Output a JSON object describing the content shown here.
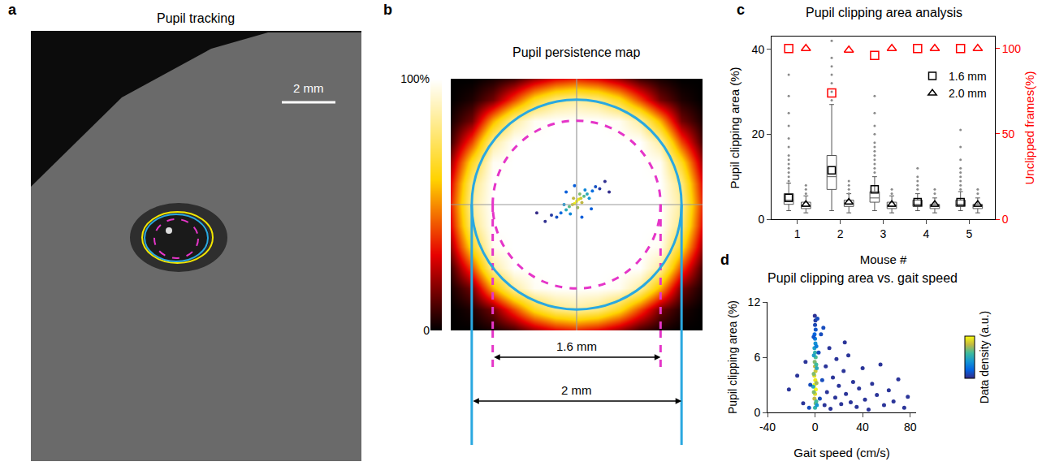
{
  "chart_data": [
    {
      "label": "a",
      "type": "image",
      "title": "Pupil tracking",
      "scale_bar": "2 mm"
    },
    {
      "label": "b",
      "type": "heatmap",
      "title": "Pupil persistence map",
      "x": [
        -1.2,
        -1,
        -0.8,
        -0.6,
        -0.4,
        -0.2,
        0,
        0.2,
        0.4,
        0.6,
        0.8,
        1,
        1.2
      ],
      "y": [
        -1.2,
        -1,
        -0.8,
        -0.6,
        -0.4,
        -0.2,
        0,
        0.2,
        0.4,
        0.6,
        0.8,
        1,
        1.2
      ],
      "z": [
        [
          0,
          0,
          3,
          8,
          20,
          30,
          35,
          30,
          20,
          8,
          3,
          0,
          0
        ],
        [
          0,
          4,
          15,
          40,
          65,
          80,
          85,
          80,
          65,
          40,
          15,
          4,
          0
        ],
        [
          3,
          15,
          55,
          85,
          98,
          100,
          100,
          100,
          98,
          85,
          55,
          15,
          3
        ],
        [
          8,
          40,
          85,
          100,
          100,
          100,
          100,
          100,
          100,
          100,
          85,
          40,
          8
        ],
        [
          20,
          65,
          98,
          100,
          100,
          100,
          100,
          100,
          100,
          100,
          98,
          65,
          20
        ],
        [
          30,
          80,
          100,
          100,
          100,
          100,
          100,
          100,
          100,
          100,
          100,
          80,
          30
        ],
        [
          35,
          85,
          100,
          100,
          100,
          100,
          100,
          100,
          100,
          100,
          100,
          85,
          35
        ],
        [
          30,
          80,
          100,
          100,
          100,
          100,
          100,
          100,
          100,
          100,
          100,
          80,
          30
        ],
        [
          20,
          65,
          98,
          100,
          100,
          100,
          100,
          100,
          100,
          100,
          98,
          65,
          20
        ],
        [
          8,
          40,
          85,
          100,
          100,
          100,
          100,
          100,
          100,
          100,
          85,
          40,
          8
        ],
        [
          3,
          15,
          55,
          85,
          98,
          100,
          100,
          100,
          98,
          85,
          55,
          15,
          3
        ],
        [
          0,
          4,
          15,
          40,
          65,
          80,
          85,
          80,
          65,
          40,
          15,
          4,
          0
        ],
        [
          0,
          0,
          3,
          8,
          20,
          30,
          35,
          30,
          20,
          8,
          3,
          0,
          0
        ]
      ],
      "colorbar": {
        "range": [
          0,
          100
        ],
        "ticks": [
          0,
          {
            "value": 100,
            "label": "100%"
          }
        ]
      },
      "xlim": [
        -1.2,
        1.2
      ],
      "ylim": [
        -1.2,
        1.2
      ],
      "tick_labels": false,
      "apertures": [
        {
          "diameter": 1.6,
          "label": "1.6 mm",
          "color": "#e535c8",
          "line_style": "dash"
        },
        {
          "diameter": 2,
          "label": "2 mm",
          "color": "#2aa8e0",
          "line_style": "solid"
        }
      ],
      "centers": {
        "x": [
          0,
          0.02,
          -0.02,
          0.04,
          -0.04,
          0.05,
          -0.03,
          0.07,
          -0.07,
          0.01,
          0.03,
          0.1,
          -0.1,
          0.12,
          -0.12,
          0.08,
          -0.06,
          0.15,
          -0.15,
          0.18,
          -0.19,
          0.22,
          -0.24,
          0.27,
          -0.3,
          0.31,
          -0.38,
          0.05,
          -0.02,
          0.14,
          -0.1
        ],
        "y": [
          0.03,
          0.05,
          0.01,
          0.06,
          0,
          0.02,
          0.06,
          0.08,
          -0.02,
          -0.03,
          0.1,
          0.1,
          -0.05,
          0.06,
          0,
          0.14,
          -0.09,
          0.13,
          -0.08,
          0.17,
          -0.12,
          0.15,
          -0.1,
          0.22,
          -0.16,
          0.12,
          -0.08,
          -0.12,
          0.18,
          -0.04,
          0.12
        ],
        "density": [
          1,
          0.95,
          0.95,
          0.85,
          0.85,
          0.8,
          0.8,
          0.65,
          0.65,
          0.75,
          0.7,
          0.5,
          0.5,
          0.4,
          0.4,
          0.35,
          0.35,
          0.25,
          0.25,
          0.15,
          0.15,
          0.08,
          0.08,
          0.04,
          0.04,
          0.03,
          0.02,
          0.2,
          0.2,
          0.2,
          0.2
        ]
      }
    },
    {
      "label": "c",
      "type": "box",
      "title": "Pupil clipping area analysis",
      "x_label": "Mouse #",
      "y_label": "Pupil clipping area (%)",
      "y2_label": "Unclipped frames(%)",
      "categories": [
        "1",
        "2",
        "3",
        "4",
        "5"
      ],
      "ylim": [
        0,
        43
      ],
      "yticks": [
        0,
        20,
        40
      ],
      "y2lim": [
        0,
        107
      ],
      "y2ticks": [
        0,
        50,
        100
      ],
      "legend": "top right",
      "series": [
        {
          "name": "1.6 mm",
          "type": "box",
          "marker": "square",
          "color": "#000000",
          "q1": [
            3.5,
            7,
            4,
            3,
            3
          ],
          "median": [
            4.5,
            10,
            5,
            3.5,
            3.5
          ],
          "q3": [
            6,
            15,
            6.5,
            4.5,
            4.5
          ],
          "lowerfence": [
            2,
            2,
            2,
            2,
            2
          ],
          "upperfence": [
            8.5,
            27,
            10,
            6,
            6.5
          ],
          "mean": [
            5,
            11.5,
            7,
            4,
            4
          ],
          "outliers": [
            [
              9,
              10,
              11,
              12,
              13,
              14,
              15,
              17,
              19,
              22,
              25,
              29,
              34
            ],
            [
              28,
              30,
              32,
              34,
              36,
              38,
              42
            ],
            [
              11,
              12,
              13,
              14,
              15,
              16,
              17,
              18,
              20,
              22,
              25,
              29
            ],
            [
              7,
              8,
              9,
              10,
              12
            ],
            [
              7,
              8,
              9,
              10,
              11,
              12,
              14,
              17,
              21
            ]
          ]
        },
        {
          "name": "2.0 mm",
          "type": "box",
          "marker": "triangle",
          "color": "#000000",
          "q1": [
            2.5,
            3,
            2.5,
            2.5,
            2.5
          ],
          "median": [
            3,
            3.5,
            3,
            3,
            3
          ],
          "q3": [
            4,
            4.5,
            4,
            3.5,
            3.5
          ],
          "lowerfence": [
            1.5,
            1.5,
            1.5,
            1.5,
            1.5
          ],
          "upperfence": [
            5.5,
            6,
            5.5,
            5,
            5
          ],
          "mean": [
            3.5,
            4,
            3.5,
            3.5,
            3.5
          ],
          "outliers": [
            [
              6,
              7,
              8
            ],
            [
              6,
              7,
              8,
              9
            ],
            [
              6,
              7
            ],
            [
              6,
              7
            ],
            [
              6,
              7
            ]
          ]
        },
        {
          "type": "scatter",
          "axis": "y2",
          "marker": "square",
          "color": "#ff0000",
          "values": [
            100,
            74,
            96,
            100,
            100
          ]
        },
        {
          "type": "scatter",
          "axis": "y2",
          "marker": "triangle",
          "color": "#ff0000",
          "values": [
            100,
            99,
            100,
            100,
            100
          ]
        }
      ]
    },
    {
      "label": "d",
      "type": "scatter",
      "title": "Pupil clipping area vs. gait speed",
      "x_label": "Gait speed (cm/s)",
      "y_label": "Pupil clipping area (%)",
      "xlim": [
        -40,
        85
      ],
      "xticks": [
        -40,
        0,
        40,
        80
      ],
      "ylim": [
        0,
        12
      ],
      "yticks": [
        0,
        6,
        12
      ],
      "colorbar": {
        "title": "Data density (a.u.)",
        "range": [
          0,
          1
        ]
      },
      "x": [
        0,
        0.5,
        -0.5,
        0,
        0.6,
        -0.4,
        0.2,
        -0.6,
        0.4,
        0,
        -0.3,
        0.5,
        0,
        -0.5,
        0.3,
        0,
        -0.4,
        0.5,
        0,
        0.3,
        -0.2,
        1,
        -1,
        1.2,
        -1.1,
        1,
        -1,
        1.1,
        -1.2,
        1.5,
        -1.5,
        1.4,
        -22,
        -15,
        -10,
        -8,
        -5,
        -4,
        3,
        4,
        5,
        6,
        8,
        9,
        10,
        12,
        13,
        15,
        17,
        18,
        20,
        22,
        24,
        26,
        28,
        30,
        32,
        35,
        37,
        40,
        42,
        45,
        48,
        52,
        55,
        58,
        62,
        66,
        70,
        75,
        78,
        7,
        2,
        25
      ],
      "y": [
        0.5,
        1,
        1.5,
        2,
        2.5,
        3,
        3.5,
        4,
        4.5,
        5,
        5.5,
        6,
        6.5,
        7,
        7.5,
        8,
        8.5,
        9,
        9.5,
        10,
        10.5,
        1.2,
        2.2,
        3.2,
        4.2,
        5.2,
        6.2,
        7.2,
        8.2,
        0.8,
        2.8,
        4.8,
        2.5,
        4,
        1,
        5.5,
        0.5,
        3,
        6.5,
        1.5,
        8.5,
        3.5,
        0.8,
        5,
        2.2,
        7,
        0.4,
        3.8,
        1.6,
        5.8,
        2.9,
        0.9,
        4.5,
        2,
        6.2,
        1.1,
        3.3,
        0.6,
        2.6,
        4.8,
        1.4,
        0.3,
        3.1,
        1.9,
        5.2,
        0.8,
        2.4,
        1.2,
        3.6,
        0.5,
        1.7,
        9.2,
        10.2,
        7.6
      ],
      "density": [
        0.55,
        0.7,
        0.8,
        0.9,
        1,
        1,
        0.95,
        0.9,
        0.85,
        0.8,
        0.7,
        0.62,
        0.55,
        0.45,
        0.38,
        0.3,
        0.22,
        0.15,
        0.1,
        0.06,
        0.03,
        0.6,
        0.7,
        0.75,
        0.7,
        0.6,
        0.45,
        0.3,
        0.15,
        0.4,
        0.5,
        0.5,
        0.04,
        0.04,
        0.04,
        0.04,
        0.12,
        0.12,
        0.12,
        0.12,
        0.12,
        0.12,
        0.04,
        0.04,
        0.04,
        0.04,
        0.04,
        0.04,
        0.04,
        0.04,
        0.04,
        0.04,
        0.04,
        0.04,
        0.04,
        0.04,
        0.04,
        0.04,
        0.04,
        0.04,
        0.04,
        0.04,
        0.04,
        0.04,
        0.04,
        0.04,
        0.04,
        0.04,
        0.04,
        0.04,
        0.04,
        0.12,
        0.12,
        0.04
      ]
    }
  ]
}
